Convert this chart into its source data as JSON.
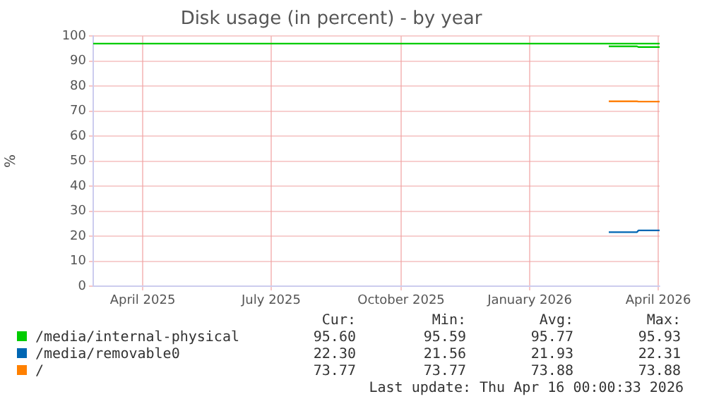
{
  "chart_data": {
    "type": "line",
    "title": "Disk usage (in percent) - by year",
    "ylabel": "%",
    "x": [
      "2026-03-11",
      "2026-03-31",
      "2026-04-01",
      "2026-04-16"
    ],
    "series": [
      {
        "name": "/media/internal-physical",
        "color": "#00cc00",
        "values": [
          95.9,
          95.9,
          95.6,
          95.6
        ]
      },
      {
        "name": "/media/removable0",
        "color": "#0066b3",
        "values": [
          21.6,
          21.6,
          22.3,
          22.3
        ]
      },
      {
        "name": "/",
        "color": "#ff8000",
        "values": [
          73.9,
          73.9,
          73.8,
          73.8
        ]
      }
    ],
    "xlim": [
      "2025-03-11",
      "2026-04-16"
    ],
    "xticks": [
      {
        "value": "2025-04-15",
        "label": "April 2025"
      },
      {
        "value": "2025-07-15",
        "label": "July 2025"
      },
      {
        "value": "2025-10-15",
        "label": "October 2025"
      },
      {
        "value": "2026-01-14",
        "label": "January 2026"
      },
      {
        "value": "2026-04-15",
        "label": "April 2026"
      }
    ],
    "ylim": [
      0,
      100
    ],
    "yticks": [
      0,
      10,
      20,
      30,
      40,
      50,
      60,
      70,
      80,
      90,
      100
    ],
    "ref_lines": [
      {
        "axis": "y",
        "value": 97,
        "color": "#00cc00"
      }
    ],
    "grid": true,
    "legend": "bottom",
    "marker": "none",
    "line_style": "solid",
    "annotations": [
      "Cur:",
      "Min:",
      "Avg:",
      "Max:",
      "95.60",
      "95.59",
      "95.77",
      "95.93",
      "22.30",
      "21.56",
      "21.93",
      "22.31",
      "73.77",
      "73.77",
      "73.88",
      "73.88",
      "Last update: Thu Apr 16 00:00:33 2026"
    ]
  }
}
